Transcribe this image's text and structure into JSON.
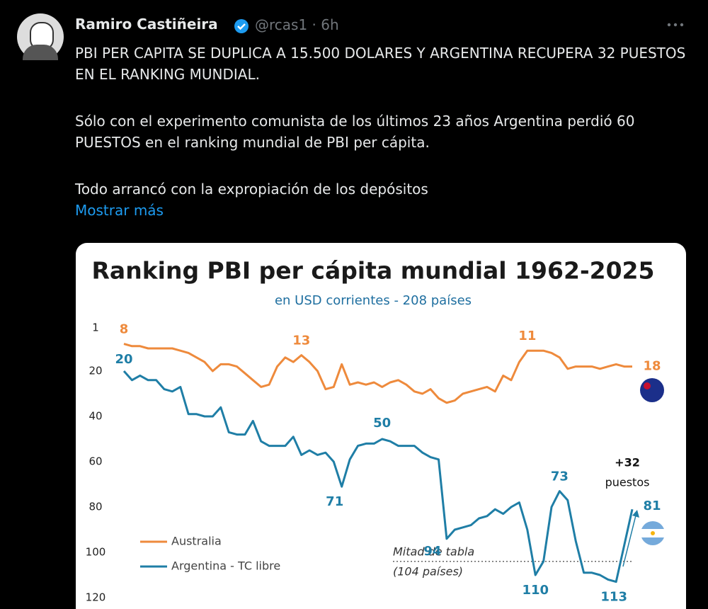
{
  "tweet": {
    "author": "Ramiro Castiñeira",
    "handle": "@rcas1",
    "separator": "·",
    "time": "6h",
    "paragraphs": [
      "PBI PER CAPITA SE DUPLICA A 15.500 DOLARES Y ARGENTINA RECUPERA 32 PUESTOS EN EL RANKING MUNDIAL.",
      "Sólo con el experimento comunista de los últimos 23 años Argentina perdió 60 PUESTOS en el ranking mundial de PBI per cápita.",
      "Todo arrancó con la expropiación de los depósitos"
    ],
    "show_more": "Mostrar más"
  },
  "chart_data": {
    "type": "line",
    "title": "Ranking PBI per cápita mundial 1962-2025",
    "subtitle": "en USD corrientes - 208 países",
    "ylim": [
      1,
      120
    ],
    "inverted": true,
    "yticks": [
      1,
      20,
      40,
      60,
      80,
      100,
      120
    ],
    "legend": "bottom-left",
    "series": [
      {
        "name": "Australia",
        "color": "#ee8a3c",
        "values": [
          8,
          9,
          9,
          10,
          10,
          10,
          10,
          11,
          12,
          14,
          16,
          20,
          17,
          17,
          18,
          21,
          24,
          27,
          26,
          18,
          14,
          16,
          13,
          16,
          20,
          28,
          27,
          17,
          26,
          25,
          26,
          25,
          27,
          25,
          24,
          26,
          29,
          30,
          28,
          32,
          34,
          33,
          30,
          29,
          28,
          27,
          29,
          22,
          24,
          16,
          11,
          11,
          11,
          12,
          14,
          19,
          18,
          18,
          18,
          19,
          18,
          17,
          18,
          18
        ]
      },
      {
        "name": "Argentina - TC libre",
        "color": "#1f7ea6",
        "values": [
          20,
          24,
          22,
          24,
          24,
          28,
          29,
          27,
          39,
          39,
          40,
          40,
          36,
          47,
          48,
          48,
          42,
          51,
          53,
          53,
          53,
          49,
          57,
          55,
          57,
          56,
          60,
          71,
          59,
          53,
          52,
          52,
          50,
          51,
          53,
          53,
          53,
          56,
          58,
          59,
          94,
          90,
          89,
          88,
          85,
          84,
          81,
          83,
          80,
          78,
          90,
          110,
          104,
          80,
          73,
          77,
          95,
          109,
          109,
          110,
          112,
          113,
          97,
          81
        ]
      }
    ],
    "reference_line": {
      "value": 104,
      "label": "Mitad de tabla",
      "note": "(104 países)"
    },
    "annotations": [
      "+32",
      "puestos"
    ]
  }
}
